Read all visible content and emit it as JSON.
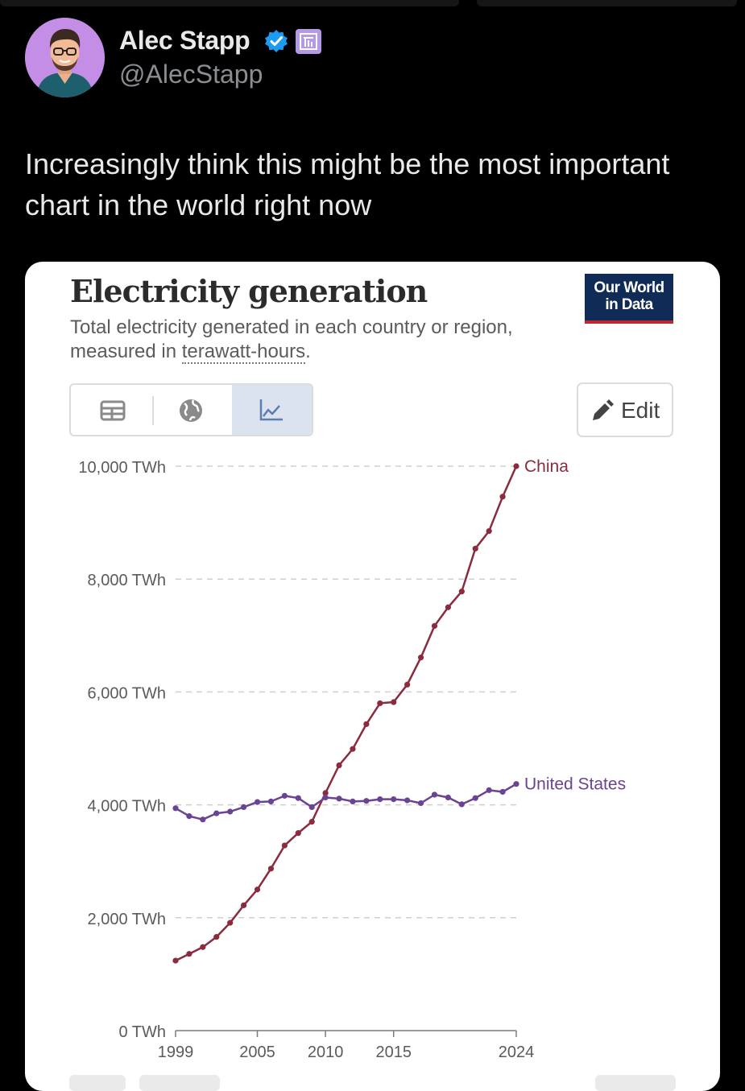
{
  "tweet": {
    "author_name": "Alec Stapp",
    "handle": "@AlecStapp",
    "text": "Increasingly think this might be the most important chart in the world right now"
  },
  "card": {
    "title": "Electricity generation",
    "subtitle_prefix": "Total electricity generated in each country or region, measured in ",
    "subtitle_link": "terawatt-hours",
    "subtitle_suffix": ".",
    "logo_line1": "Our World",
    "logo_line2": "in Data",
    "view_tabs": [
      {
        "icon": "table-icon",
        "active": false
      },
      {
        "icon": "globe-icon",
        "active": false
      },
      {
        "icon": "line-chart-icon",
        "active": true
      }
    ],
    "edit_label": "Edit"
  },
  "colors": {
    "china": "#8b2b3e",
    "united_states": "#6b4393",
    "active_tab": "#dbe3ef",
    "owid_navy": "#0f2b56",
    "owid_red": "#c1272d"
  },
  "chart_data": {
    "type": "line",
    "title": "Electricity generation",
    "subtitle": "Total electricity generated in each country or region, measured in terawatt-hours.",
    "ylim": [
      0,
      10000
    ],
    "yticks": [
      {
        "value": 0,
        "label": "0 TWh"
      },
      {
        "value": 2000,
        "label": "2,000 TWh"
      },
      {
        "value": 4000,
        "label": "4,000 TWh"
      },
      {
        "value": 6000,
        "label": "6,000 TWh"
      },
      {
        "value": 8000,
        "label": "8,000 TWh"
      },
      {
        "value": 10000,
        "label": "10,000 TWh"
      }
    ],
    "xlim": [
      1999,
      2024
    ],
    "xticks": [
      {
        "value": 1999,
        "label": "1999"
      },
      {
        "value": 2005,
        "label": "2005"
      },
      {
        "value": 2010,
        "label": "2010"
      },
      {
        "value": 2015,
        "label": "2015"
      },
      {
        "value": 2024,
        "label": "2024"
      }
    ],
    "grid": true,
    "x": [
      1999,
      2000,
      2001,
      2002,
      2003,
      2004,
      2005,
      2006,
      2007,
      2008,
      2009,
      2010,
      2011,
      2012,
      2013,
      2014,
      2015,
      2016,
      2017,
      2018,
      2019,
      2020,
      2021,
      2022,
      2023,
      2024
    ],
    "series": [
      {
        "name": "China",
        "color": "#8b2b3e",
        "values": [
          1240,
          1360,
          1480,
          1660,
          1910,
          2220,
          2500,
          2870,
          3280,
          3500,
          3700,
          4210,
          4700,
          4990,
          5430,
          5800,
          5820,
          6130,
          6610,
          7170,
          7500,
          7780,
          8540,
          8850,
          9460,
          10000
        ]
      },
      {
        "name": "United States",
        "color": "#6b4393",
        "values": [
          3940,
          3800,
          3740,
          3850,
          3880,
          3960,
          4050,
          4060,
          4160,
          4120,
          3960,
          4130,
          4110,
          4060,
          4070,
          4100,
          4100,
          4080,
          4030,
          4180,
          4130,
          4010,
          4120,
          4260,
          4230,
          4370
        ]
      }
    ]
  }
}
